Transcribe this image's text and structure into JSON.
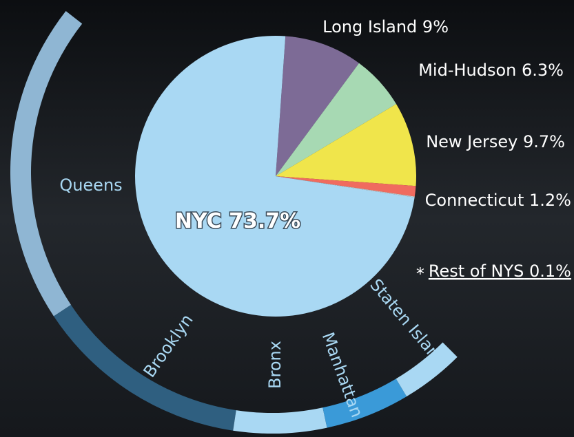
{
  "chart_data": {
    "type": "pie",
    "categories": [
      "NYC",
      "Long Island",
      "Mid-Hudson",
      "New Jersey",
      "Connecticut",
      "Rest of NYS"
    ],
    "values": [
      73.7,
      9,
      6.3,
      9.7,
      1.2,
      0.1
    ],
    "value_labels": [
      "73.7%",
      "9%",
      "6.3%",
      "9.7%",
      "1.2%",
      "0.1%"
    ],
    "colors": [
      "#a9d8f3",
      "#7d6b96",
      "#a7d9b3",
      "#f0e54b",
      "#f06b5f",
      "#c9c9c9"
    ],
    "note_marker": "*",
    "breakdown": {
      "categories": [
        "Queens",
        "Brooklyn",
        "Bronx",
        "Manhattan",
        "Staten Island"
      ],
      "values": [
        30.4,
        20.4,
        8.8,
        8.0,
        6.0
      ],
      "colors": [
        "#8fb6d3",
        "#2f5f80",
        "#a9d8f3",
        "#3a9ad8",
        "#a9d8f3"
      ]
    }
  }
}
